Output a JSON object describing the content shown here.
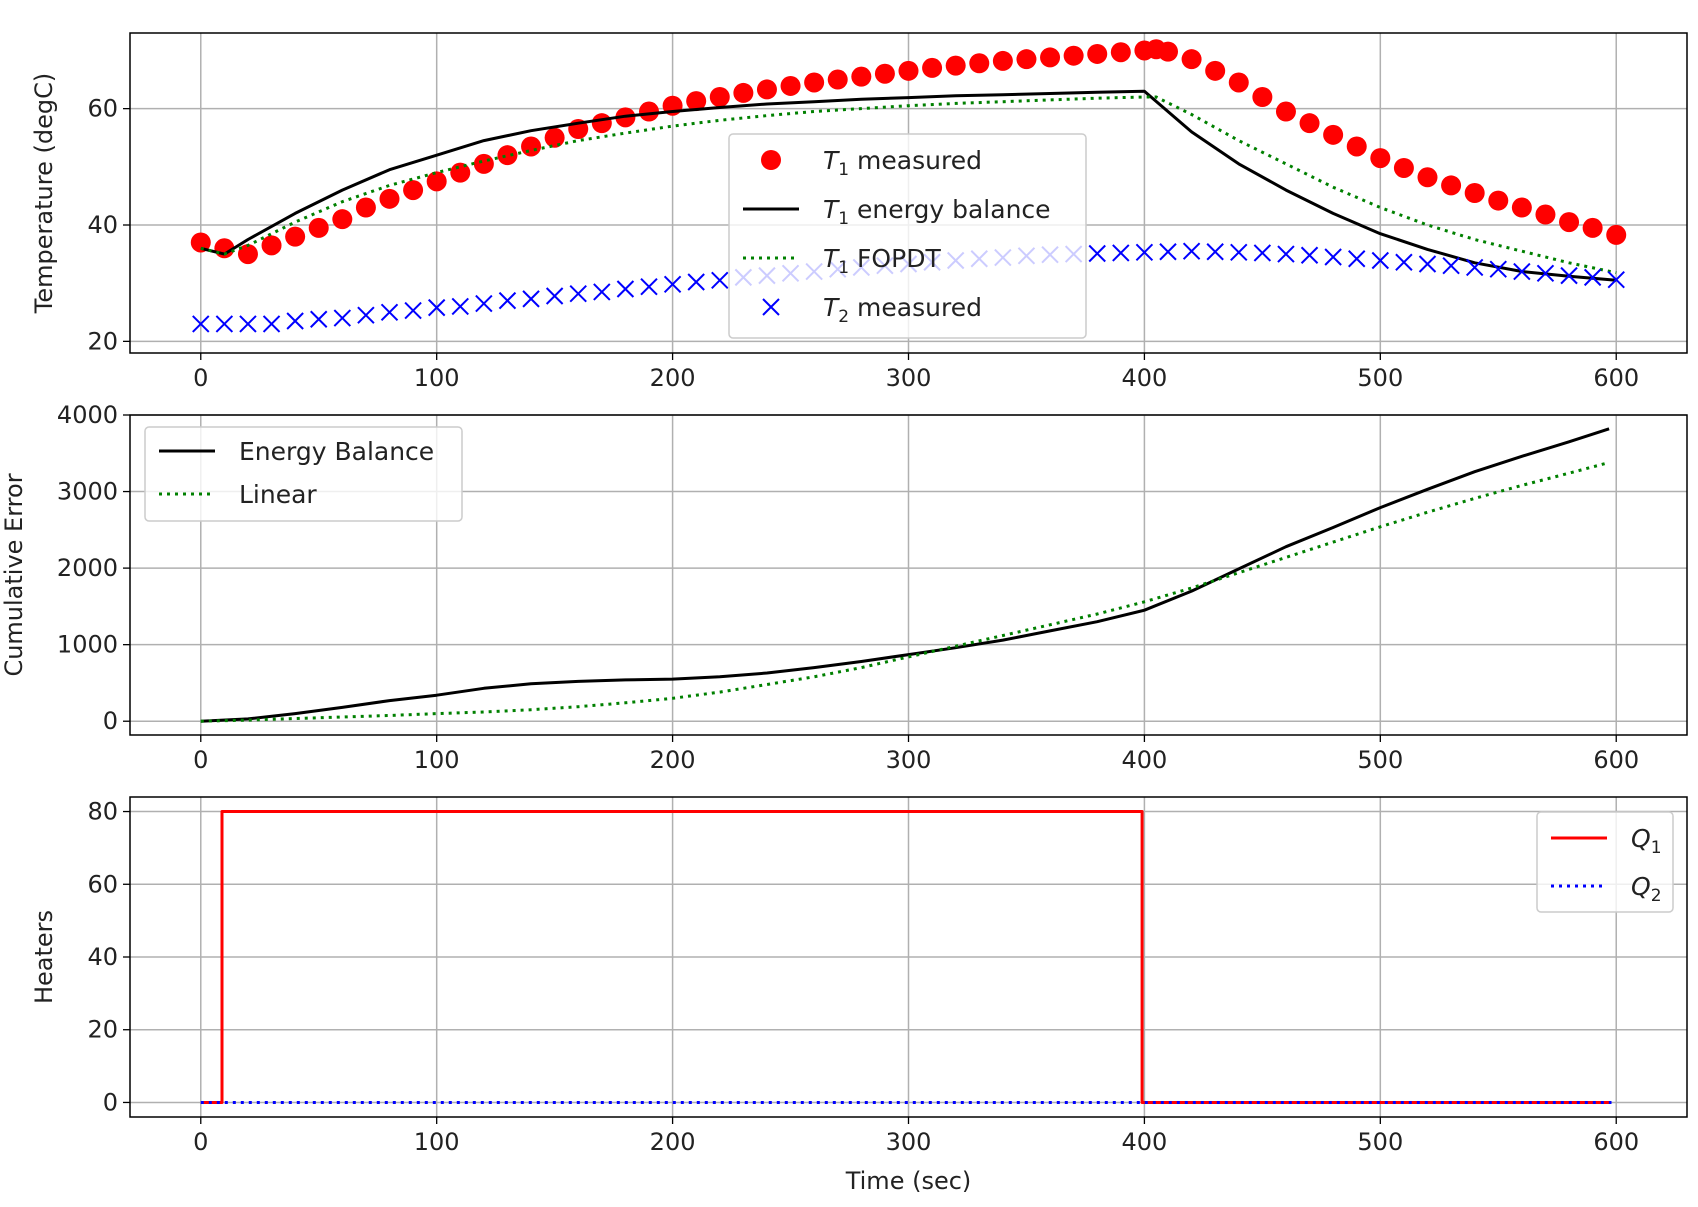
{
  "chart_data": [
    {
      "type": "scatter",
      "xlim": [
        -30,
        630
      ],
      "ylim": [
        18,
        73
      ],
      "ylabel": "Temperature (degC)",
      "xticks": [
        0,
        100,
        200,
        300,
        400,
        500,
        600
      ],
      "yticks": [
        20,
        40,
        60
      ],
      "grid": true,
      "legend_position": "center",
      "series": [
        {
          "name": "T1 measured",
          "legend_main": "T",
          "legend_sub": "1",
          "legend_tail": " measured",
          "marker": "circle",
          "color": "#ff0000",
          "x": [
            0,
            10,
            20,
            30,
            40,
            50,
            60,
            70,
            80,
            90,
            100,
            110,
            120,
            130,
            140,
            150,
            160,
            170,
            180,
            190,
            200,
            210,
            220,
            230,
            240,
            250,
            260,
            270,
            280,
            290,
            300,
            310,
            320,
            330,
            340,
            350,
            360,
            370,
            380,
            390,
            400,
            405,
            410,
            420,
            430,
            440,
            450,
            460,
            470,
            480,
            490,
            500,
            510,
            520,
            530,
            540,
            550,
            560,
            570,
            580,
            590,
            600
          ],
          "y": [
            37,
            36,
            35,
            36.5,
            38,
            39.5,
            41,
            43,
            44.5,
            46,
            47.5,
            49,
            50.5,
            52,
            53.5,
            55,
            56.5,
            57.5,
            58.5,
            59.5,
            60.5,
            61.3,
            62,
            62.7,
            63.3,
            63.9,
            64.5,
            65,
            65.5,
            66,
            66.5,
            67,
            67.4,
            67.8,
            68.2,
            68.5,
            68.8,
            69.1,
            69.4,
            69.7,
            70,
            70.2,
            69.8,
            68.5,
            66.5,
            64.5,
            62,
            59.5,
            57.5,
            55.5,
            53.5,
            51.5,
            49.8,
            48.2,
            46.8,
            45.5,
            44.2,
            43,
            41.8,
            40.5,
            39.5,
            38.3
          ]
        },
        {
          "name": "T1 energy balance",
          "legend_main": "T",
          "legend_sub": "1",
          "legend_tail": " energy balance",
          "style": "solid",
          "color": "#000000",
          "x": [
            0,
            10,
            20,
            40,
            60,
            80,
            100,
            120,
            140,
            160,
            180,
            200,
            220,
            240,
            260,
            280,
            300,
            320,
            340,
            360,
            380,
            400,
            420,
            440,
            460,
            480,
            500,
            520,
            540,
            560,
            580,
            600
          ],
          "y": [
            36,
            35,
            37.5,
            42,
            46,
            49.5,
            52,
            54.5,
            56.2,
            57.5,
            58.7,
            59.5,
            60.2,
            60.8,
            61.2,
            61.6,
            61.9,
            62.2,
            62.4,
            62.6,
            62.8,
            63,
            56,
            50.5,
            46,
            42,
            38.5,
            35.8,
            33.5,
            32,
            31.2,
            30.5
          ]
        },
        {
          "name": "T1 FOPDT",
          "legend_main": "T",
          "legend_sub": "1",
          "legend_tail": " FOPDT",
          "style": "dotted",
          "color": "#008000",
          "x": [
            0,
            10,
            20,
            40,
            60,
            80,
            100,
            120,
            140,
            160,
            180,
            200,
            220,
            240,
            260,
            280,
            300,
            320,
            340,
            360,
            380,
            400,
            405,
            420,
            440,
            460,
            480,
            500,
            520,
            540,
            560,
            580,
            600
          ],
          "y": [
            36,
            35,
            36.5,
            40.5,
            44,
            46.8,
            49,
            51,
            52.8,
            54.5,
            55.8,
            57,
            58,
            58.8,
            59.5,
            60,
            60.5,
            60.9,
            61.2,
            61.5,
            61.8,
            62,
            62,
            59,
            54.5,
            50.5,
            46.5,
            43,
            40,
            37.5,
            35.5,
            33.5,
            31.8
          ]
        },
        {
          "name": "T2 measured",
          "legend_main": "T",
          "legend_sub": "2",
          "legend_tail": " measured",
          "marker": "x",
          "color": "#0000ff",
          "x": [
            0,
            10,
            20,
            30,
            40,
            50,
            60,
            70,
            80,
            90,
            100,
            110,
            120,
            130,
            140,
            150,
            160,
            170,
            180,
            190,
            200,
            210,
            220,
            230,
            240,
            250,
            260,
            270,
            280,
            290,
            300,
            310,
            320,
            330,
            340,
            350,
            360,
            370,
            380,
            390,
            400,
            410,
            420,
            430,
            440,
            450,
            460,
            470,
            480,
            490,
            500,
            510,
            520,
            530,
            540,
            550,
            560,
            570,
            580,
            590,
            600
          ],
          "y": [
            23,
            23,
            23,
            23,
            23.5,
            23.8,
            24,
            24.5,
            25,
            25.3,
            25.8,
            26,
            26.5,
            27,
            27.3,
            27.8,
            28.2,
            28.5,
            29,
            29.4,
            29.8,
            30.2,
            30.5,
            31,
            31.3,
            31.7,
            32,
            32.4,
            32.7,
            33,
            33.3,
            33.6,
            33.9,
            34.2,
            34.4,
            34.7,
            34.9,
            35,
            35.1,
            35.2,
            35.3,
            35.4,
            35.5,
            35.4,
            35.3,
            35.2,
            35,
            34.8,
            34.5,
            34.2,
            33.9,
            33.6,
            33.3,
            33,
            32.7,
            32.4,
            32,
            31.7,
            31.3,
            31,
            30.6
          ]
        }
      ]
    },
    {
      "type": "line",
      "xlim": [
        -30,
        630
      ],
      "ylim": [
        -180,
        4000
      ],
      "ylabel": "Cumulative Error",
      "xticks": [
        0,
        100,
        200,
        300,
        400,
        500,
        600
      ],
      "yticks": [
        0,
        1000,
        2000,
        3000,
        4000
      ],
      "grid": true,
      "legend_position": "upper left",
      "series": [
        {
          "name": "Energy Balance",
          "style": "solid",
          "color": "#000000",
          "x": [
            0,
            20,
            40,
            60,
            80,
            100,
            120,
            140,
            160,
            180,
            200,
            220,
            240,
            260,
            280,
            300,
            320,
            340,
            360,
            380,
            400,
            420,
            440,
            460,
            480,
            500,
            520,
            540,
            560,
            580,
            597
          ],
          "y": [
            0,
            30,
            100,
            180,
            270,
            340,
            430,
            490,
            520,
            540,
            550,
            580,
            630,
            700,
            780,
            870,
            960,
            1060,
            1180,
            1300,
            1450,
            1700,
            1990,
            2280,
            2530,
            2790,
            3030,
            3260,
            3460,
            3650,
            3820
          ]
        },
        {
          "name": "Linear",
          "style": "dotted",
          "color": "#008000",
          "x": [
            0,
            20,
            40,
            60,
            80,
            100,
            120,
            140,
            160,
            180,
            200,
            220,
            240,
            260,
            280,
            300,
            320,
            340,
            360,
            380,
            400,
            420,
            440,
            460,
            480,
            500,
            520,
            540,
            560,
            580,
            597
          ],
          "y": [
            0,
            15,
            35,
            55,
            75,
            100,
            120,
            150,
            190,
            240,
            300,
            380,
            480,
            580,
            700,
            840,
            980,
            1120,
            1260,
            1400,
            1560,
            1740,
            1940,
            2140,
            2340,
            2540,
            2730,
            2910,
            3080,
            3240,
            3380
          ]
        }
      ]
    },
    {
      "type": "line",
      "xlim": [
        -30,
        630
      ],
      "ylim": [
        -4,
        84
      ],
      "xlabel": "Time (sec)",
      "ylabel": "Heaters",
      "xticks": [
        0,
        100,
        200,
        300,
        400,
        500,
        600
      ],
      "yticks": [
        0,
        20,
        40,
        60,
        80
      ],
      "grid": true,
      "legend_position": "upper right",
      "series": [
        {
          "name": "Q1",
          "legend_main": "Q",
          "legend_sub": "1",
          "style": "solid",
          "color": "#ff0000",
          "x": [
            0,
            9,
            9,
            399,
            399,
            598
          ],
          "y": [
            0,
            0,
            80,
            80,
            0,
            0
          ]
        },
        {
          "name": "Q2",
          "legend_main": "Q",
          "legend_sub": "2",
          "style": "dotted",
          "color": "#0000ff",
          "x": [
            0,
            598
          ],
          "y": [
            0,
            0
          ]
        }
      ]
    }
  ]
}
